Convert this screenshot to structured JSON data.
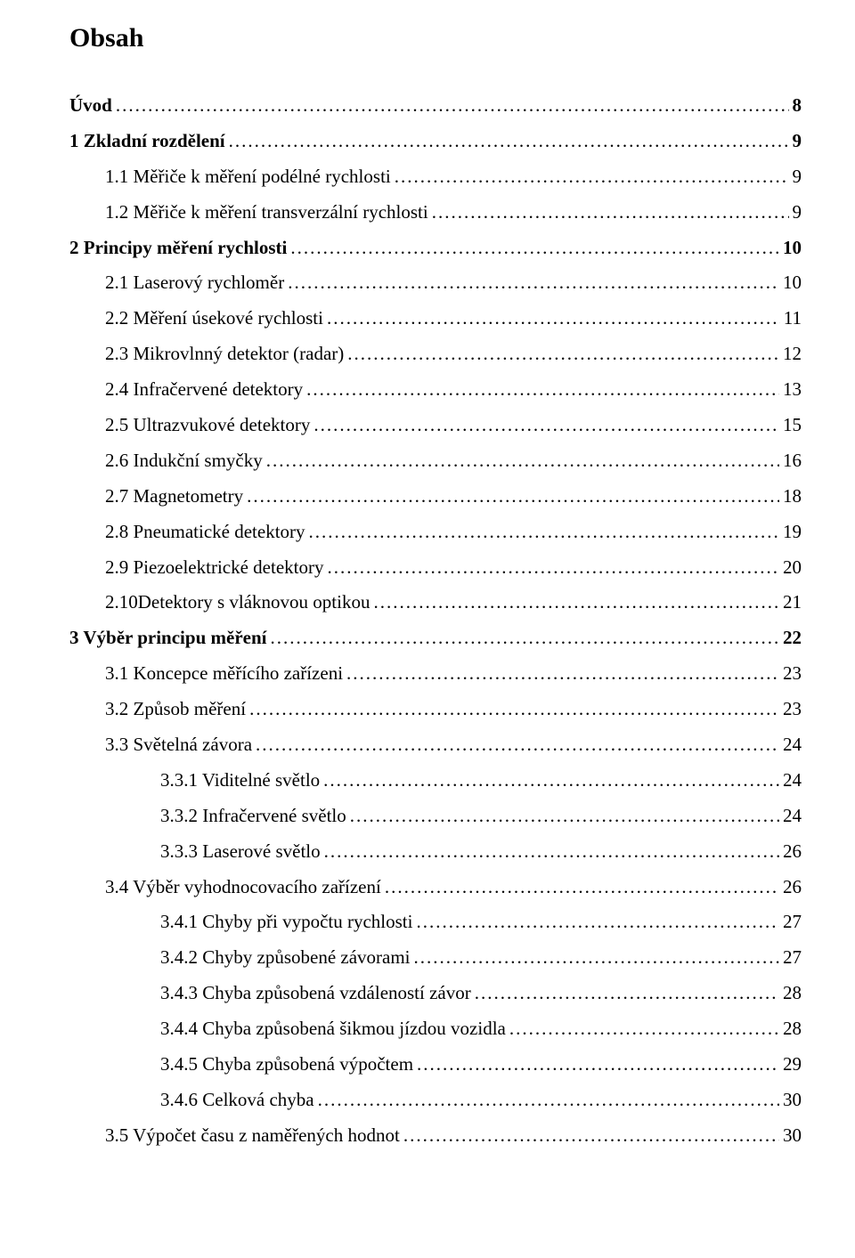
{
  "title": "Obsah",
  "leader": "................................................................................................................................................................................................................................................................................",
  "entries": [
    {
      "label": "Úvod",
      "page": "8",
      "level": 0,
      "bold": true
    },
    {
      "label": "1   Zkladní rozdělení",
      "page": "9",
      "level": 0,
      "bold": true
    },
    {
      "label": "1.1 Měřiče k měření podélné rychlosti",
      "page": "9",
      "level": 1,
      "bold": false
    },
    {
      "label": "1.2 Měřiče k měření transverzální rychlosti",
      "page": "9",
      "level": 1,
      "bold": false
    },
    {
      "label": "2   Principy měření rychlosti",
      "page": "10",
      "level": 0,
      "bold": true
    },
    {
      "label": "2.1 Laserový rychloměr",
      "page": "10",
      "level": 1,
      "bold": false
    },
    {
      "label": "2.2 Měření úsekové rychlosti",
      "page": "11",
      "level": 1,
      "bold": false
    },
    {
      "label": "2.3 Mikrovlnný detektor (radar)",
      "page": "12",
      "level": 1,
      "bold": false
    },
    {
      "label": "2.4 Infračervené detektory",
      "page": "13",
      "level": 1,
      "bold": false
    },
    {
      "label": "2.5 Ultrazvukové detektory",
      "page": "15",
      "level": 1,
      "bold": false
    },
    {
      "label": "2.6 Indukční smyčky",
      "page": "16",
      "level": 1,
      "bold": false
    },
    {
      "label": "2.7 Magnetometry",
      "page": "18",
      "level": 1,
      "bold": false
    },
    {
      "label": "2.8 Pneumatické detektory",
      "page": "19",
      "level": 1,
      "bold": false
    },
    {
      "label": "2.9 Piezoelektrické detektory",
      "page": "20",
      "level": 1,
      "bold": false
    },
    {
      "label": "2.10Detektory s vláknovou optikou",
      "page": "21",
      "level": 1,
      "bold": false
    },
    {
      "label": "3   Výběr principu měření",
      "page": "22",
      "level": 0,
      "bold": true
    },
    {
      "label": "3.1 Koncepce měřícího zařízeni",
      "page": "23",
      "level": 1,
      "bold": false
    },
    {
      "label": "3.2 Způsob měření",
      "page": "23",
      "level": 1,
      "bold": false
    },
    {
      "label": "3.3 Světelná závora",
      "page": "24",
      "level": 1,
      "bold": false
    },
    {
      "label": "3.3.1    Viditelné světlo",
      "page": "24",
      "level": 2,
      "bold": false
    },
    {
      "label": "3.3.2    Infračervené světlo",
      "page": "24",
      "level": 2,
      "bold": false
    },
    {
      "label": "3.3.3    Laserové světlo",
      "page": "26",
      "level": 2,
      "bold": false
    },
    {
      "label": "3.4 Výběr vyhodnocovacího zařízení",
      "page": "26",
      "level": 1,
      "bold": false
    },
    {
      "label": "3.4.1    Chyby při vypočtu rychlosti",
      "page": "27",
      "level": 2,
      "bold": false
    },
    {
      "label": "3.4.2    Chyby způsobené závorami",
      "page": "27",
      "level": 2,
      "bold": false
    },
    {
      "label": "3.4.3    Chyba způsobená vzdáleností závor",
      "page": "28",
      "level": 2,
      "bold": false
    },
    {
      "label": "3.4.4    Chyba způsobená šikmou jízdou vozidla",
      "page": "28",
      "level": 2,
      "bold": false
    },
    {
      "label": "3.4.5    Chyba způsobená výpočtem",
      "page": "29",
      "level": 2,
      "bold": false
    },
    {
      "label": "3.4.6    Celková chyba",
      "page": "30",
      "level": 2,
      "bold": false
    },
    {
      "label": "3.5 Výpočet času z naměřených hodnot",
      "page": "30",
      "level": 1,
      "bold": false
    }
  ]
}
